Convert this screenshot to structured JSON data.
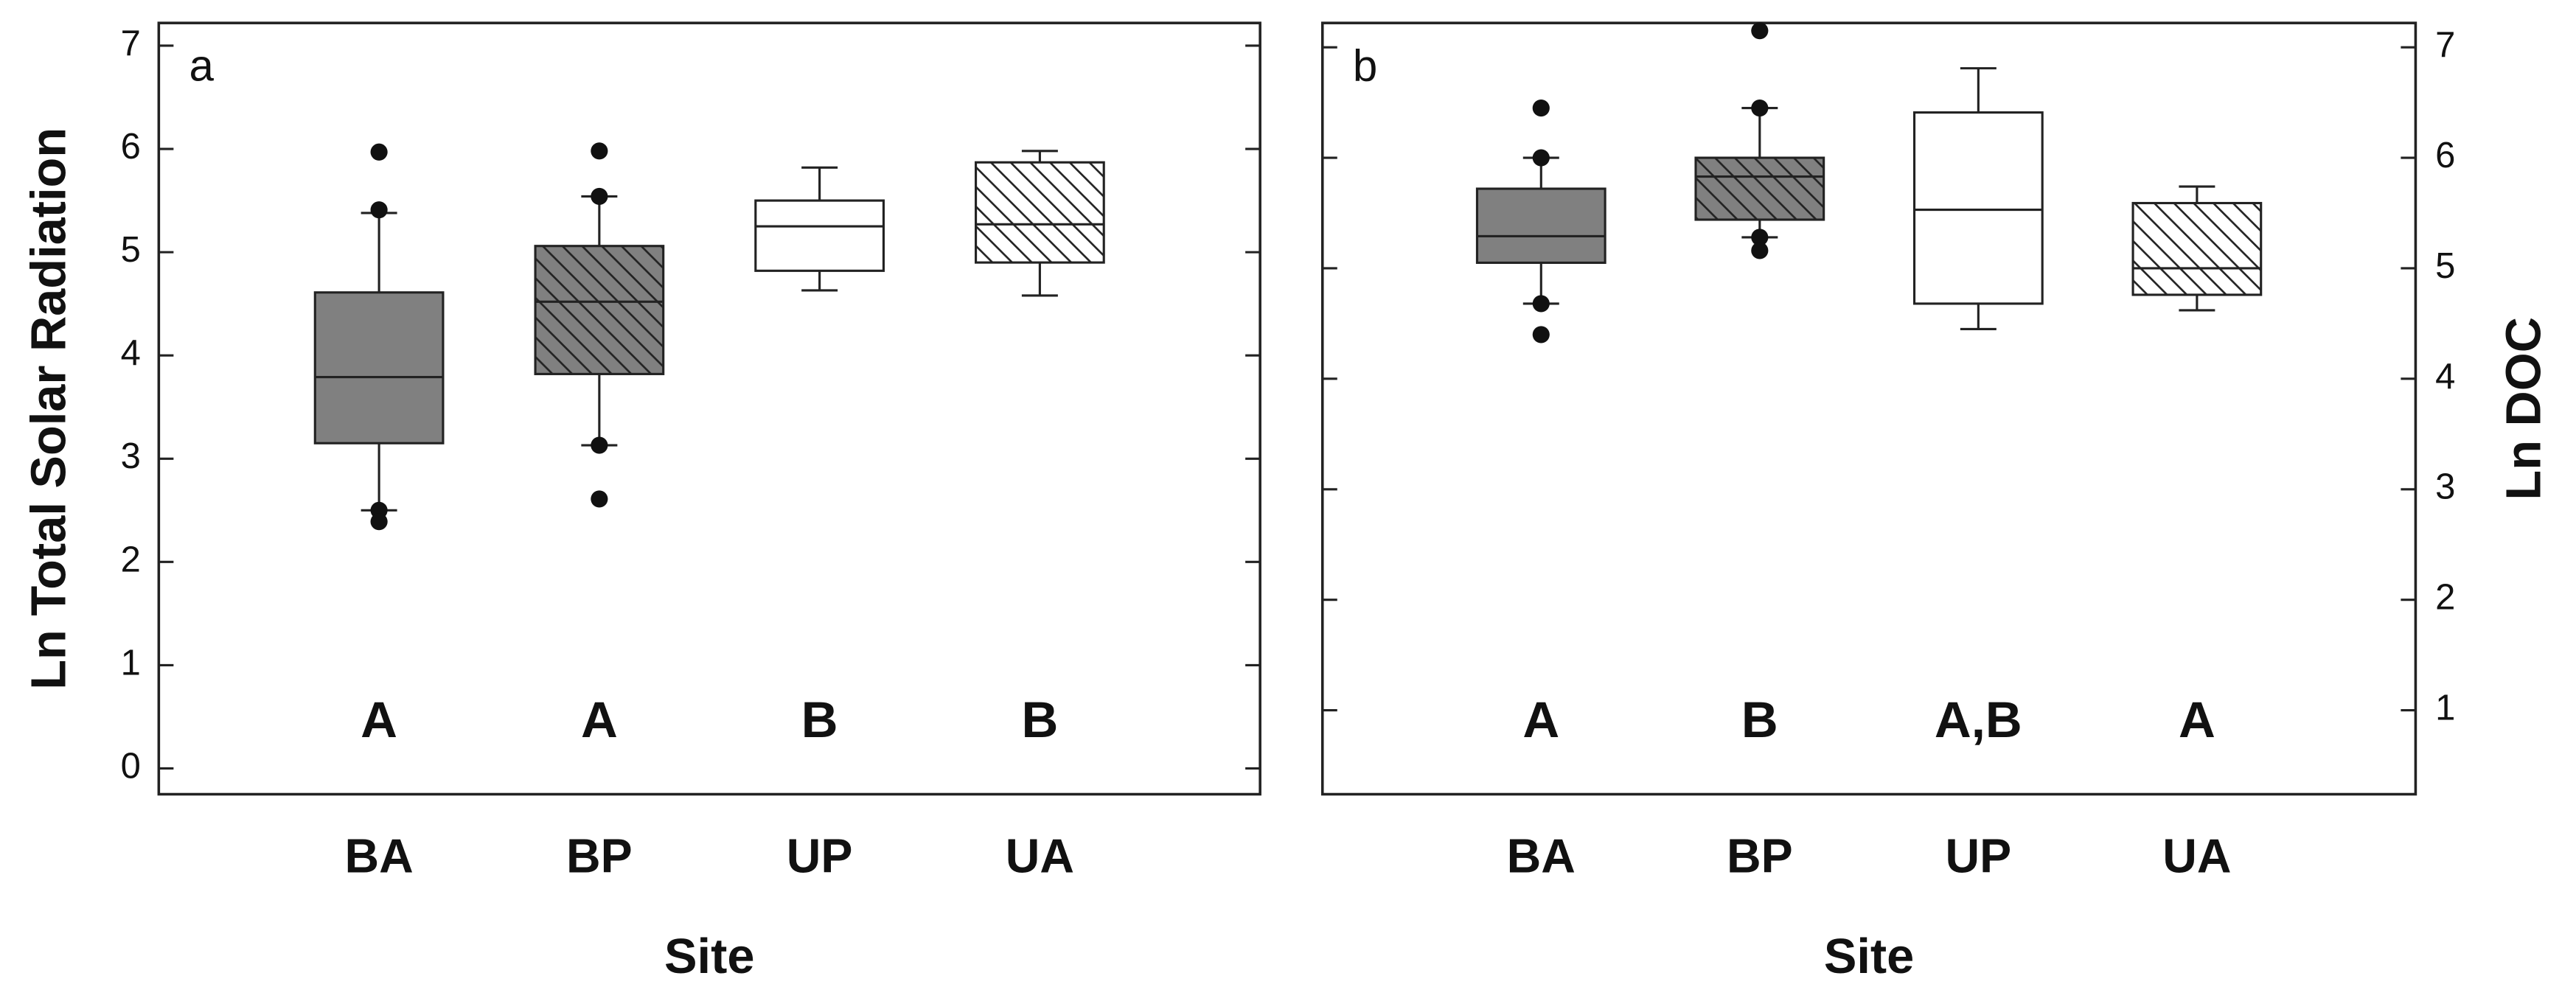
{
  "chart_data": [
    {
      "type": "box",
      "panel_label": "a",
      "ylabel": "Ln Total Solar Radiation",
      "xlabel": "Site",
      "yaxis_side": "left",
      "categories": [
        "BA",
        "BP",
        "UP",
        "UA"
      ],
      "colors": [
        "#808080",
        "#808080",
        "#ffffff",
        "#ffffff"
      ],
      "hatch": [
        false,
        true,
        false,
        true
      ],
      "boxes": [
        {
          "whisker_low": 2.5,
          "q1": 3.15,
          "median": 3.79,
          "q3": 4.61,
          "whisker_high": 5.38,
          "outliers": [
            5.97,
            5.41,
            2.5,
            2.39
          ]
        },
        {
          "whisker_low": 3.13,
          "q1": 3.82,
          "median": 4.52,
          "q3": 5.06,
          "whisker_high": 5.54,
          "outliers": [
            5.98,
            5.54,
            3.13,
            2.61
          ]
        },
        {
          "whisker_low": 4.63,
          "q1": 4.82,
          "median": 5.25,
          "q3": 5.5,
          "whisker_high": 5.82,
          "outliers": []
        },
        {
          "whisker_low": 4.58,
          "q1": 4.9,
          "median": 5.27,
          "q3": 5.87,
          "whisker_high": 5.98,
          "outliers": []
        }
      ],
      "annotations": [
        "A",
        "A",
        "B",
        "B"
      ],
      "ylim": [
        -0.25,
        7.22
      ],
      "yticks": [
        0,
        1,
        2,
        3,
        4,
        5,
        6,
        7
      ]
    },
    {
      "type": "box",
      "panel_label": "b",
      "ylabel": "Ln DOC",
      "xlabel": "Site",
      "yaxis_side": "right",
      "categories": [
        "BA",
        "BP",
        "UP",
        "UA"
      ],
      "colors": [
        "#808080",
        "#808080",
        "#ffffff",
        "#ffffff"
      ],
      "hatch": [
        false,
        true,
        false,
        true
      ],
      "boxes": [
        {
          "whisker_low": 4.68,
          "q1": 5.05,
          "median": 5.29,
          "q3": 5.72,
          "whisker_high": 6.0,
          "outliers": [
            6.45,
            6.0,
            4.68,
            4.4
          ]
        },
        {
          "whisker_low": 5.28,
          "q1": 5.44,
          "median": 5.83,
          "q3": 6.0,
          "whisker_high": 6.45,
          "outliers": [
            7.15,
            6.45,
            5.28,
            5.16
          ]
        },
        {
          "whisker_low": 4.45,
          "q1": 4.68,
          "median": 5.53,
          "q3": 6.41,
          "whisker_high": 6.81,
          "outliers": []
        },
        {
          "whisker_low": 4.62,
          "q1": 4.76,
          "median": 5.0,
          "q3": 5.59,
          "whisker_high": 5.74,
          "outliers": []
        }
      ],
      "annotations": [
        "A",
        "B",
        "A,B",
        "A"
      ],
      "ylim": [
        0.24,
        7.22
      ],
      "yticks": [
        1,
        2,
        3,
        4,
        5,
        6,
        7
      ]
    }
  ]
}
